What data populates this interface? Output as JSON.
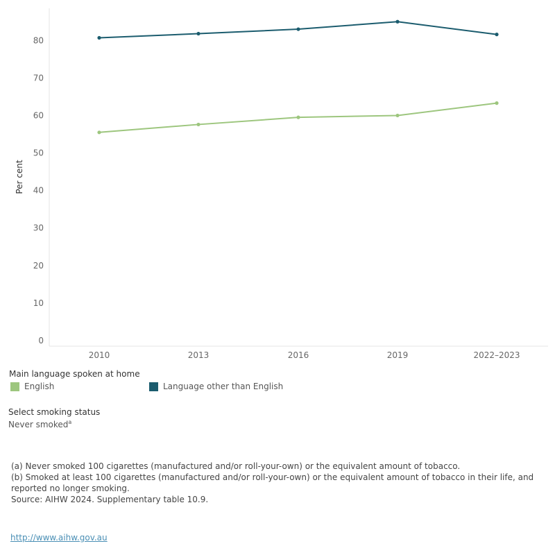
{
  "chart_data": {
    "type": "line",
    "title": "",
    "xlabel": "",
    "ylabel": "Per cent",
    "categories": [
      "2010",
      "2013",
      "2016",
      "2019",
      "2022–2023"
    ],
    "ylim": [
      0,
      88
    ],
    "yticks": [
      0,
      10,
      20,
      30,
      40,
      50,
      60,
      70,
      80
    ],
    "grid": false,
    "legend_position": "bottom",
    "series": [
      {
        "name": "English",
        "color": "#9dc67e",
        "values": [
          55.5,
          57.6,
          59.5,
          60.0,
          63.3
        ]
      },
      {
        "name": "Language other than English",
        "color": "#1b5c6e",
        "values": [
          80.7,
          81.8,
          83.0,
          85.0,
          81.6
        ]
      }
    ]
  },
  "legend": {
    "title": "Main language spoken at home",
    "items": [
      {
        "label": "English",
        "color": "#9dc67e"
      },
      {
        "label": "Language other than English",
        "color": "#1b5c6e"
      }
    ]
  },
  "filter": {
    "label": "Select smoking status",
    "value": "Never smoked",
    "value_sup": "a"
  },
  "notes": [
    "(a) Never smoked 100 cigarettes (manufactured and/or roll-your-own) or the equivalent amount of tobacco.",
    "(b) Smoked at least 100 cigarettes (manufactured and/or roll-your-own) or the equivalent amount of tobacco in their life, and reported no longer smoking.",
    "Source: AIHW 2024. Supplementary table 10.9."
  ],
  "link": "http://www.aihw.gov.au"
}
